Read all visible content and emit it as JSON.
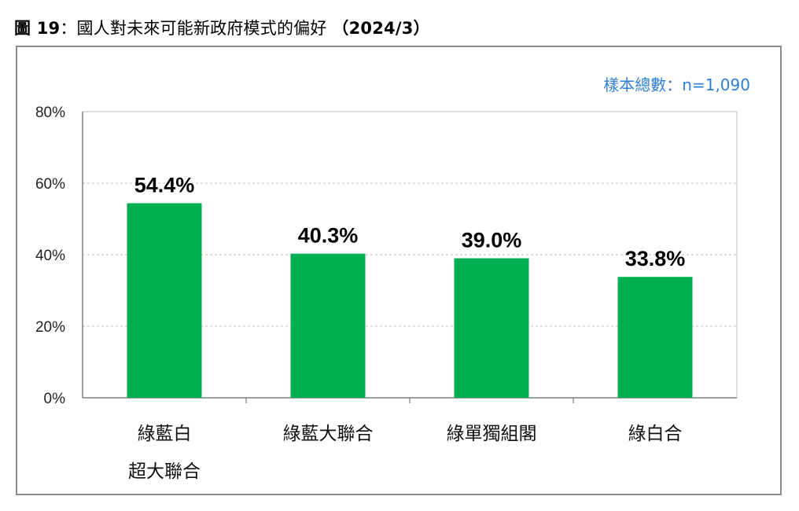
{
  "figure": {
    "title_prefix": "圖 19",
    "title_main": "：國人對未來可能新政府模式的偏好 ",
    "title_date": "（2024/3）",
    "sample_note": "樣本總數：n=1,090"
  },
  "colors": {
    "bar": "#00b050",
    "grid": "#bfbfbf",
    "axis": "#7f7f7f",
    "sample_note": "#2f7fd6"
  },
  "chart_data": {
    "type": "bar",
    "title": "國人對未來可能新政府模式的偏好",
    "categories": [
      [
        "綠藍白",
        "超大聯合"
      ],
      [
        "綠藍大聯合"
      ],
      [
        "綠單獨組閣"
      ],
      [
        "綠白合"
      ]
    ],
    "values": [
      54.4,
      40.3,
      39.0,
      33.8
    ],
    "value_labels": [
      "54.4%",
      "40.3%",
      "39.0%",
      "33.8%"
    ],
    "ylim": [
      0,
      80
    ],
    "yticks": [
      0,
      20,
      40,
      60,
      80
    ],
    "ytick_labels": [
      "0%",
      "20%",
      "40%",
      "60%",
      "80%"
    ],
    "grid": "dashed horizontal",
    "legend": "none"
  }
}
